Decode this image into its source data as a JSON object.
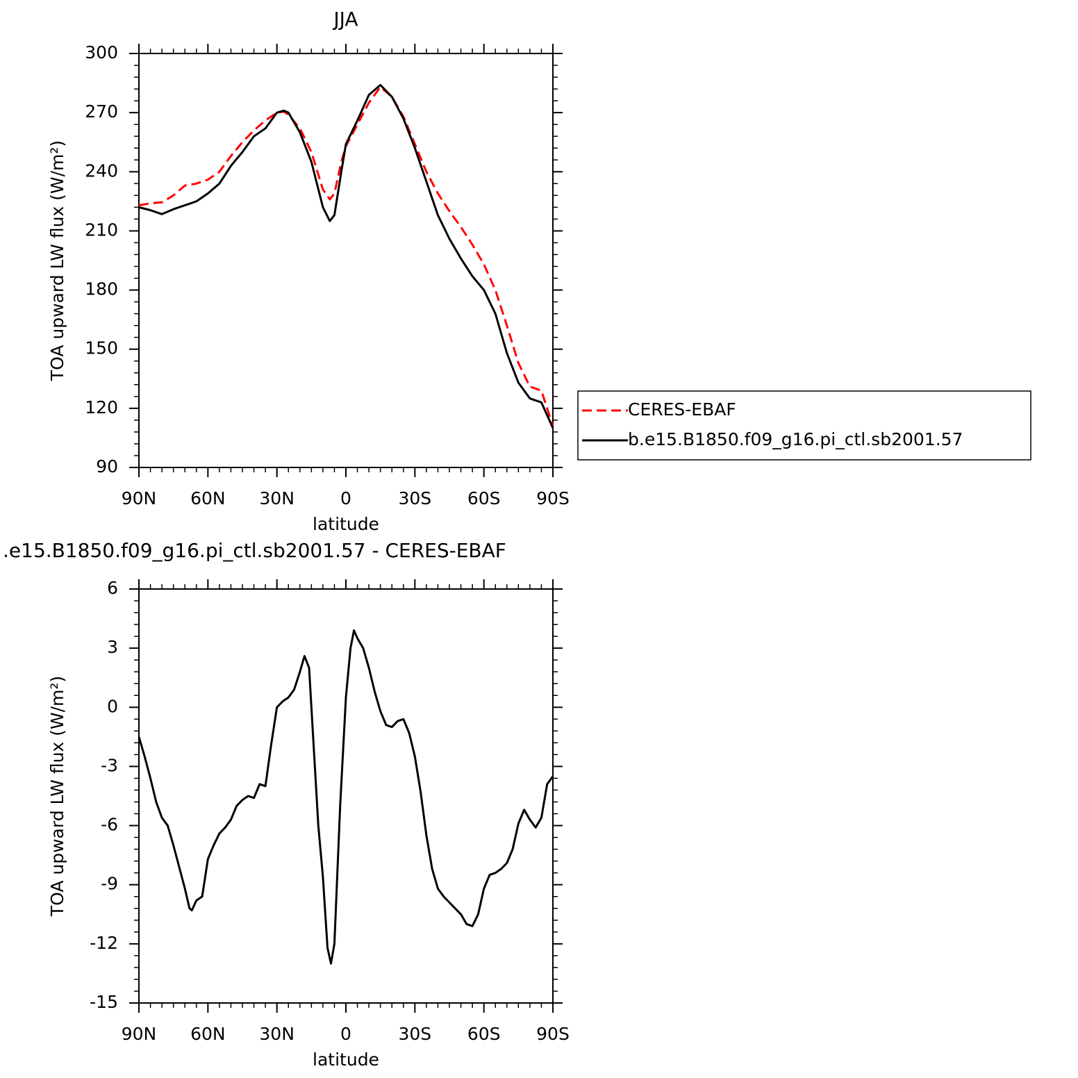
{
  "chart_data": [
    {
      "type": "line",
      "title": "JJA",
      "xlabel": "latitude",
      "ylabel": "TOA upward LW flux (W/m²)",
      "x": [
        90,
        85,
        80,
        75,
        70,
        65,
        60,
        55,
        50,
        45,
        40,
        35,
        30,
        27,
        25,
        20,
        15,
        10,
        7,
        5,
        2,
        0,
        -5,
        -10,
        -15,
        -20,
        -25,
        -30,
        -35,
        -40,
        -45,
        -50,
        -55,
        -60,
        -65,
        -70,
        -75,
        -80,
        -85,
        -90
      ],
      "xlim": [
        90,
        -90
      ],
      "xticks": [
        {
          "value": 90,
          "label": "90N"
        },
        {
          "value": 60,
          "label": "60N"
        },
        {
          "value": 30,
          "label": "30N"
        },
        0,
        {
          "value": -30,
          "label": "30S"
        },
        {
          "value": -60,
          "label": "60S"
        },
        {
          "value": -90,
          "label": "90S"
        }
      ],
      "ylim": [
        90,
        300
      ],
      "yticks": [
        90,
        120,
        150,
        180,
        210,
        240,
        270,
        300
      ],
      "legend_position": "right",
      "series": [
        {
          "name": "CERES-EBAF",
          "color": "#ff0000",
          "dashed": true,
          "values": [
            223,
            224,
            224.5,
            228,
            233,
            234,
            236,
            240,
            248,
            255,
            261,
            266,
            270,
            270.5,
            269,
            262,
            250,
            231,
            226,
            229,
            245,
            253,
            264,
            275,
            283,
            278,
            268,
            254,
            240,
            229,
            220,
            212,
            203,
            193,
            180,
            162,
            143,
            131,
            129,
            111
          ]
        },
        {
          "name": "b.e15.B1850.f09_g16.pi_ctl.sb2001.57",
          "color": "#000000",
          "dashed": false,
          "values": [
            222,
            220.5,
            218.5,
            221,
            223,
            225,
            229,
            234,
            243,
            250,
            258,
            262,
            270,
            271,
            270,
            260,
            245,
            222,
            215,
            218,
            240,
            254,
            266,
            279,
            284,
            278,
            267,
            252,
            235,
            218,
            206,
            196,
            187,
            180,
            168,
            148,
            133,
            125,
            123,
            110
          ]
        }
      ]
    },
    {
      "type": "line",
      "title": ".e15.B1850.f09_g16.pi_ctl.sb2001.57 - CERES-EBAF",
      "xlabel": "latitude",
      "ylabel": "TOA upward LW flux (W/m²)",
      "x": [
        90,
        87.5,
        85,
        82.5,
        80,
        77.5,
        75,
        72.5,
        70,
        68,
        67,
        65,
        62.5,
        60,
        57.5,
        55,
        52.5,
        50,
        47.5,
        45,
        42.5,
        40,
        37.5,
        35,
        32.5,
        30,
        27.5,
        25,
        22.5,
        20,
        18,
        16,
        14,
        12,
        10,
        8,
        6.5,
        5,
        2.5,
        0,
        -2,
        -3.5,
        -5,
        -7.5,
        -10,
        -12.5,
        -15,
        -17.5,
        -20,
        -22.5,
        -25,
        -27.5,
        -30,
        -32.5,
        -35,
        -37.5,
        -40,
        -42.5,
        -45,
        -47.5,
        -50,
        -52.5,
        -55,
        -57.5,
        -60,
        -62.5,
        -65,
        -67.5,
        -70,
        -72.5,
        -75,
        -77.5,
        -80,
        -82.5,
        -85,
        -87.5,
        -90
      ],
      "values": [
        -1.5,
        -2.5,
        -3.6,
        -4.8,
        -5.6,
        -6.0,
        -7.0,
        -8.1,
        -9.2,
        -10.2,
        -10.3,
        -9.8,
        -9.6,
        -7.7,
        -7.0,
        -6.4,
        -6.1,
        -5.7,
        -5.0,
        -4.7,
        -4.5,
        -4.6,
        -3.9,
        -4.0,
        -1.9,
        0.0,
        0.3,
        0.5,
        0.9,
        1.8,
        2.6,
        2.0,
        -2.0,
        -6.0,
        -8.6,
        -12.2,
        -13.0,
        -12.0,
        -5.0,
        0.5,
        3.0,
        3.9,
        3.5,
        3.0,
        2.0,
        0.8,
        -0.2,
        -0.9,
        -1.0,
        -0.7,
        -0.6,
        -1.3,
        -2.5,
        -4.3,
        -6.5,
        -8.2,
        -9.2,
        -9.6,
        -9.9,
        -10.2,
        -10.5,
        -11.0,
        -11.1,
        -10.5,
        -9.2,
        -8.5,
        -8.4,
        -8.2,
        -7.9,
        -7.2,
        -5.9,
        -5.2,
        -5.7,
        -6.1,
        -5.6,
        -3.9,
        -3.5
      ],
      "color": "#000000",
      "xlim": [
        90,
        -90
      ],
      "xticks": [
        {
          "value": 90,
          "label": "90N"
        },
        {
          "value": 60,
          "label": "60N"
        },
        {
          "value": 30,
          "label": "30N"
        },
        0,
        {
          "value": -30,
          "label": "30S"
        },
        {
          "value": -60,
          "label": "60S"
        },
        {
          "value": -90,
          "label": "90S"
        }
      ],
      "ylim": [
        -15,
        6
      ],
      "yticks": [
        -15,
        -12,
        -9,
        -6,
        -3,
        0,
        3,
        6
      ]
    }
  ]
}
